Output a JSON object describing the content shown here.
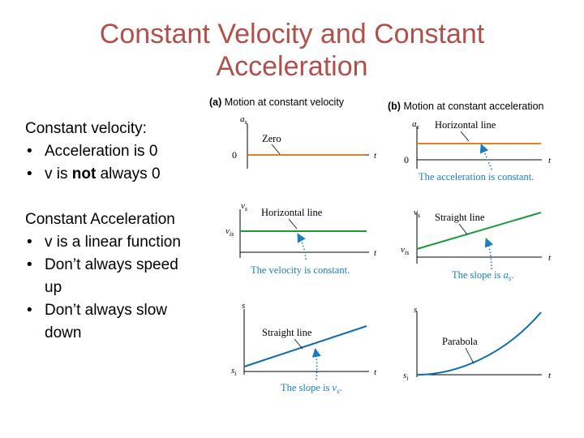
{
  "title": {
    "line1": "Constant Velocity and Constant",
    "line2": "Acceleration"
  },
  "bullets": {
    "const_velocity": {
      "heading": "Constant velocity:",
      "items": [
        {
          "pre": "Acceleration is 0",
          "bold": "",
          "post": ""
        },
        {
          "pre": "v is ",
          "bold": "not",
          "post": " always 0"
        }
      ]
    },
    "const_acceleration": {
      "heading": "Constant Acceleration",
      "items": [
        {
          "line1": "v is a linear function",
          "line2": ""
        },
        {
          "line1": "Don’t always speed",
          "line2": "up"
        },
        {
          "line1": "Don’t always slow",
          "line2": "down"
        }
      ]
    }
  },
  "figure": {
    "panel_a": {
      "letter": "(a)",
      "label": "Motion at constant velocity"
    },
    "panel_b": {
      "letter": "(b)",
      "label": "Motion at constant acceleration"
    },
    "axis": {
      "a": "a",
      "a_sub": "s",
      "v": "v",
      "v_sub": "s",
      "s": "s",
      "t": "t",
      "vi": "v",
      "vi_sub": "is",
      "si": "s",
      "si_sub": "i",
      "zero": "0"
    },
    "annotations": {
      "zero": "Zero",
      "horizontal_line": "Horizontal line",
      "straight_line": "Straight line",
      "parabola": "Parabola",
      "accel_constant": "The acceleration is constant.",
      "velocity_constant": "The velocity is constant.",
      "slope_is": "The slope is",
      "slope_as": "a",
      "slope_as_sub": "s",
      "slope_vs": "v",
      "slope_vs_sub": "s",
      "period": "."
    },
    "colors": {
      "orange": "#e8801c",
      "green": "#1a9a3a",
      "blue": "#0f6bab",
      "note_blue": "#1b7dbf"
    }
  }
}
